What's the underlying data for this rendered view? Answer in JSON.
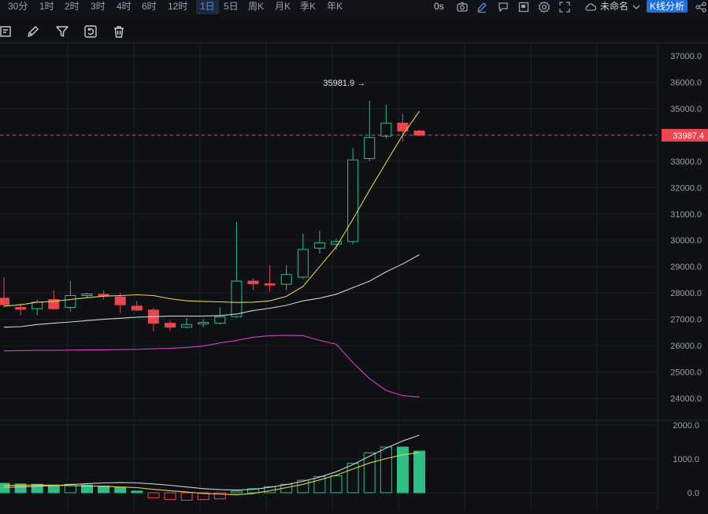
{
  "timeframes": [
    "30分",
    "1时",
    "2时",
    "3时",
    "4时",
    "6时",
    "12时",
    "1日",
    "5日",
    "周K",
    "月K",
    "季K",
    "年K"
  ],
  "active_timeframe": "1日",
  "topbar_right": {
    "interval_label": "0s",
    "layout_name": "未命名",
    "chart_mode_button": "K线分析"
  },
  "toolbar_icons": [
    "edit-chart-icon",
    "draw-pen-icon",
    "filter-icon",
    "replay-icon",
    "trash-icon"
  ],
  "colors": {
    "up": "#2ebd85",
    "down": "#e9464f",
    "ma_short": "#e8d44d",
    "ma_mid": "#cfcfcf",
    "ma_long": "#d63fc7",
    "price_line": "#e9464f",
    "background": "#0e1014",
    "grid": "#1b1e24"
  },
  "chart_data": {
    "type": "candlestick",
    "price_axis_ticks": [
      "37000.0",
      "36000.0",
      "35000.0",
      "34000.0",
      "33000.0",
      "32000.0",
      "31000.0",
      "30000.0",
      "29000.0",
      "28000.0",
      "27000.0",
      "26000.0",
      "25000.0",
      "24000.0"
    ],
    "price_range": [
      23950,
      37200
    ],
    "current_price_label": "33987.4",
    "current_price": 33987.4,
    "high_annotation": "35981.9 →",
    "high_value": 35981.9,
    "candles": [
      {
        "o": 27800,
        "c": 27550,
        "h": 28600,
        "l": 27450
      },
      {
        "o": 27450,
        "c": 27380,
        "h": 27600,
        "l": 27150
      },
      {
        "o": 27400,
        "c": 27650,
        "h": 27750,
        "l": 27150
      },
      {
        "o": 27750,
        "c": 27400,
        "h": 28100,
        "l": 27350
      },
      {
        "o": 27450,
        "c": 27900,
        "h": 28450,
        "l": 27300
      },
      {
        "o": 27900,
        "c": 27960,
        "h": 28000,
        "l": 27800
      },
      {
        "o": 27950,
        "c": 27880,
        "h": 28100,
        "l": 27750
      },
      {
        "o": 27850,
        "c": 27550,
        "h": 28000,
        "l": 27250
      },
      {
        "o": 27500,
        "c": 27350,
        "h": 27700,
        "l": 27300
      },
      {
        "o": 27350,
        "c": 26850,
        "h": 27450,
        "l": 26550
      },
      {
        "o": 26850,
        "c": 26700,
        "h": 26950,
        "l": 26550
      },
      {
        "o": 26700,
        "c": 26800,
        "h": 27050,
        "l": 26650
      },
      {
        "o": 26820,
        "c": 26880,
        "h": 27000,
        "l": 26700
      },
      {
        "o": 26850,
        "c": 27100,
        "h": 27450,
        "l": 26800
      },
      {
        "o": 27100,
        "c": 28450,
        "h": 30700,
        "l": 27050
      },
      {
        "o": 28450,
        "c": 28350,
        "h": 28550,
        "l": 28100
      },
      {
        "o": 28350,
        "c": 28300,
        "h": 29050,
        "l": 28050
      },
      {
        "o": 28330,
        "c": 28700,
        "h": 29050,
        "l": 28100
      },
      {
        "o": 28600,
        "c": 29650,
        "h": 30250,
        "l": 28550
      },
      {
        "o": 29700,
        "c": 29900,
        "h": 30350,
        "l": 29500
      },
      {
        "o": 29850,
        "c": 29950,
        "h": 30050,
        "l": 29650
      },
      {
        "o": 29950,
        "c": 33050,
        "h": 33500,
        "l": 29850
      },
      {
        "o": 33100,
        "c": 33900,
        "h": 35300,
        "l": 33000
      },
      {
        "o": 33950,
        "c": 34450,
        "h": 35150,
        "l": 33850
      },
      {
        "o": 34450,
        "c": 34150,
        "h": 34800,
        "l": 33750
      },
      {
        "o": 34150,
        "c": 33987,
        "h": 34200,
        "l": 33950
      }
    ],
    "ma_short": [
      27500,
      27550,
      27650,
      27680,
      27750,
      27820,
      27880,
      27900,
      27930,
      27900,
      27780,
      27700,
      27680,
      27660,
      27640,
      27650,
      27700,
      27870,
      28250,
      29000,
      29750,
      30800,
      31900,
      32950,
      34000,
      34900
    ],
    "ma_mid": [
      26700,
      26720,
      26800,
      26850,
      26900,
      26950,
      27000,
      27040,
      27080,
      27100,
      27120,
      27120,
      27120,
      27140,
      27200,
      27330,
      27420,
      27530,
      27700,
      27800,
      27950,
      28200,
      28450,
      28800,
      29100,
      29450
    ],
    "ma_long": [
      25800,
      25810,
      25820,
      25820,
      25830,
      25840,
      25840,
      25850,
      25860,
      25880,
      25900,
      25930,
      25980,
      26100,
      26200,
      26320,
      26380,
      26390,
      26380,
      26200,
      26050,
      25350,
      24750,
      24300,
      24100,
      24050
    ],
    "volume_axis_ticks": [
      "2000.0",
      "1000.0",
      "0.0"
    ],
    "volume_range": [
      -300,
      2200
    ],
    "volume_bars": [
      {
        "v": 280,
        "up": true
      },
      {
        "v": 260,
        "up": true
      },
      {
        "v": 250,
        "up": true
      },
      {
        "v": 230,
        "up": true
      },
      {
        "v": 250,
        "up": false
      },
      {
        "v": 230,
        "up": true
      },
      {
        "v": 200,
        "up": true
      },
      {
        "v": 150,
        "up": true
      },
      {
        "v": 50,
        "up": true
      },
      {
        "v": -150,
        "up": false
      },
      {
        "v": -200,
        "up": false
      },
      {
        "v": -220,
        "up": false
      },
      {
        "v": -200,
        "up": false
      },
      {
        "v": -180,
        "up": false
      },
      {
        "v": 50,
        "up": false
      },
      {
        "v": 120,
        "up": false
      },
      {
        "v": 180,
        "up": false
      },
      {
        "v": 250,
        "up": false
      },
      {
        "v": 370,
        "up": false
      },
      {
        "v": 480,
        "up": false
      },
      {
        "v": 500,
        "up": false
      },
      {
        "v": 870,
        "up": false
      },
      {
        "v": 1180,
        "up": false
      },
      {
        "v": 1350,
        "up": false
      },
      {
        "v": 1350,
        "up": true
      },
      {
        "v": 1230,
        "up": true
      }
    ],
    "volume_ma_short": [
      220,
      220,
      230,
      220,
      210,
      200,
      190,
      170,
      150,
      100,
      60,
      20,
      -20,
      -40,
      -60,
      -20,
      60,
      150,
      250,
      380,
      520,
      700,
      880,
      1010,
      1120,
      1190
    ],
    "volume_ma_long": [
      160,
      170,
      190,
      210,
      240,
      270,
      290,
      300,
      290,
      260,
      220,
      170,
      120,
      90,
      80,
      100,
      160,
      240,
      340,
      460,
      620,
      830,
      1080,
      1320,
      1530,
      1700
    ]
  }
}
